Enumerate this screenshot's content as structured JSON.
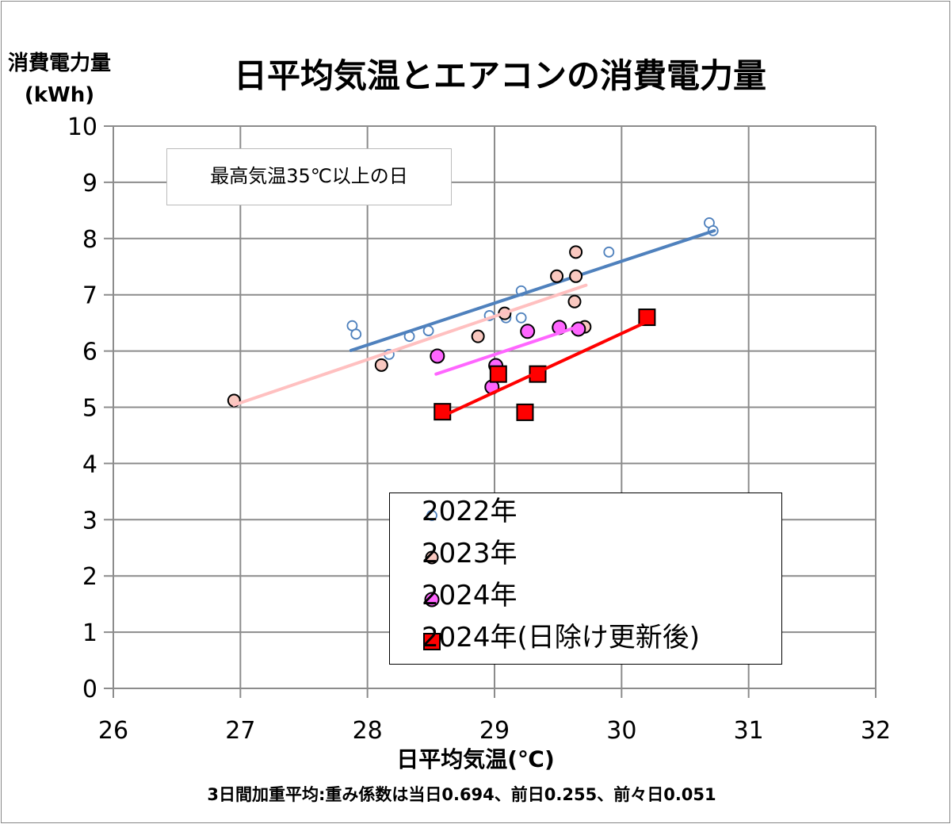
{
  "chart_data": {
    "type": "scatter",
    "title": "日平均気温とエアコンの消費電力量",
    "ylabel": [
      "消費電力量",
      "(kWh)"
    ],
    "xlabel": "日平均気温(℃)",
    "note": "3日間加重平均:重み係数は当日0.694、前日0.255、前々日0.051",
    "annotation": "最高気温35℃以上の日",
    "xlim": [
      26,
      32
    ],
    "ylim": [
      0,
      10
    ],
    "xticks": [
      26,
      27,
      28,
      29,
      30,
      31,
      32
    ],
    "yticks": [
      0,
      1,
      2,
      3,
      4,
      5,
      6,
      7,
      8,
      9,
      10
    ],
    "grid": true,
    "legend_position": "bottom-center",
    "series": [
      {
        "name": "2022年",
        "marker": "open-circle",
        "color": "#4f81bd",
        "points": [
          [
            27.88,
            6.45
          ],
          [
            27.91,
            6.3
          ],
          [
            28.17,
            5.94
          ],
          [
            28.33,
            6.26
          ],
          [
            28.48,
            6.36
          ],
          [
            28.96,
            6.63
          ],
          [
            29.09,
            6.59
          ],
          [
            29.21,
            7.07
          ],
          [
            29.21,
            6.59
          ],
          [
            29.9,
            7.76
          ],
          [
            30.69,
            8.28
          ],
          [
            30.72,
            8.14
          ]
        ],
        "trend": [
          [
            27.87,
            6.01
          ],
          [
            30.73,
            8.14
          ]
        ],
        "trend_color": "#4f81bd"
      },
      {
        "name": "2023年",
        "marker": "filled-circle",
        "color": "#f9c8c0",
        "points": [
          [
            26.95,
            5.12
          ],
          [
            28.11,
            5.75
          ],
          [
            28.87,
            6.26
          ],
          [
            29.08,
            6.67
          ],
          [
            29.49,
            7.33
          ],
          [
            29.64,
            7.76
          ],
          [
            29.64,
            7.33
          ],
          [
            29.63,
            6.88
          ],
          [
            29.71,
            6.43
          ]
        ],
        "trend": [
          [
            26.95,
            5.04
          ],
          [
            29.72,
            7.17
          ]
        ],
        "trend_color": "#ffc0c0"
      },
      {
        "name": "2024年",
        "marker": "filled-circle",
        "color": "#ff66ff",
        "points": [
          [
            28.55,
            5.91
          ],
          [
            29.01,
            5.74
          ],
          [
            28.98,
            5.36
          ],
          [
            29.26,
            6.35
          ],
          [
            29.51,
            6.42
          ],
          [
            29.66,
            6.39
          ]
        ],
        "trend": [
          [
            28.54,
            5.59
          ],
          [
            29.64,
            6.42
          ]
        ],
        "trend_color": "#ff66ff"
      },
      {
        "name": "2024年(日除け更新後)",
        "marker": "square",
        "color": "#ff0000",
        "points": [
          [
            28.59,
            4.92
          ],
          [
            29.03,
            5.59
          ],
          [
            29.34,
            5.59
          ],
          [
            29.24,
            4.91
          ],
          [
            30.2,
            6.6
          ]
        ],
        "trend": [
          [
            28.59,
            4.84
          ],
          [
            30.2,
            6.52
          ]
        ],
        "trend_color": "#ff0000"
      }
    ]
  }
}
